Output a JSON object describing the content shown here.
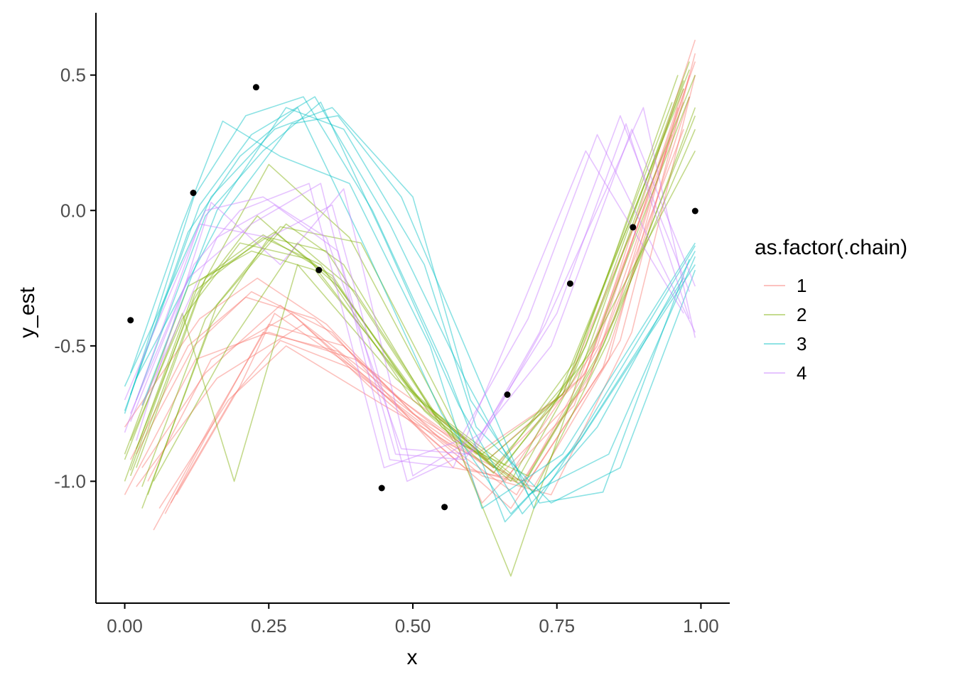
{
  "chart_data": {
    "type": "line",
    "xlabel": "x",
    "ylabel": "y_est",
    "xlim": [
      -0.05,
      1.05
    ],
    "ylim": [
      -1.45,
      0.73
    ],
    "x_ticks": [
      0.0,
      0.25,
      0.5,
      0.75,
      1.0
    ],
    "x_tick_labels": [
      "0.00",
      "0.25",
      "0.50",
      "0.75",
      "1.00"
    ],
    "y_ticks": [
      0.5,
      0.0,
      -0.5,
      -1.0
    ],
    "y_tick_labels": [
      "0.5",
      "0.0",
      "-0.5",
      "-1.0"
    ],
    "grid": false,
    "legend": {
      "title": "as.factor(.chain)",
      "position": "right",
      "entries": [
        {
          "label": "1",
          "color": "#F8766D"
        },
        {
          "label": "2",
          "color": "#7CAE00"
        },
        {
          "label": "3",
          "color": "#00BFC4"
        },
        {
          "label": "4",
          "color": "#C77CFF"
        }
      ]
    },
    "observed_points": {
      "x": [
        0.01,
        0.119,
        0.228,
        0.337,
        0.446,
        0.555,
        0.664,
        0.773,
        0.882,
        0.99
      ],
      "y": [
        -0.405,
        0.065,
        0.455,
        -0.22,
        -1.025,
        -1.095,
        -0.68,
        -0.27,
        -0.062,
        -0.002
      ]
    },
    "series": [
      {
        "chain": "1",
        "x": [
          0.0,
          0.123,
          0.25,
          0.4,
          0.58,
          0.64,
          0.8,
          0.99
        ],
        "y": [
          -1.05,
          -0.55,
          -0.45,
          -0.55,
          -0.82,
          -0.95,
          -0.6,
          0.63
        ]
      },
      {
        "chain": "1",
        "x": [
          0.03,
          0.14,
          0.27,
          0.42,
          0.6,
          0.66,
          0.82,
          0.97
        ],
        "y": [
          -0.95,
          -0.6,
          -0.35,
          -0.6,
          -0.9,
          -1.0,
          -0.5,
          0.45
        ]
      },
      {
        "chain": "1",
        "x": [
          0.05,
          0.16,
          0.25,
          0.38,
          0.55,
          0.68,
          0.85,
          0.98
        ],
        "y": [
          -1.18,
          -0.75,
          -0.42,
          -0.5,
          -0.85,
          -1.05,
          -0.4,
          0.5
        ]
      },
      {
        "chain": "1",
        "x": [
          0.02,
          0.12,
          0.22,
          0.36,
          0.57,
          0.7,
          0.84,
          0.96
        ],
        "y": [
          -0.9,
          -0.5,
          -0.3,
          -0.45,
          -0.95,
          -1.0,
          -0.55,
          0.38
        ]
      },
      {
        "chain": "1",
        "x": [
          0.06,
          0.18,
          0.28,
          0.45,
          0.58,
          0.62,
          0.78,
          0.99
        ],
        "y": [
          -1.1,
          -0.7,
          -0.5,
          -0.72,
          -0.88,
          -1.08,
          -0.72,
          0.55
        ]
      },
      {
        "chain": "1",
        "x": [
          0.09,
          0.2,
          0.26,
          0.41,
          0.53,
          0.65,
          0.8,
          0.97
        ],
        "y": [
          -1.05,
          -0.65,
          -0.38,
          -0.6,
          -0.8,
          -0.98,
          -0.65,
          0.3
        ]
      },
      {
        "chain": "1",
        "x": [
          0.0,
          0.13,
          0.23,
          0.35,
          0.5,
          0.63,
          0.79,
          0.94
        ],
        "y": [
          -0.8,
          -0.4,
          -0.25,
          -0.42,
          -0.75,
          -0.92,
          -0.62,
          0.22
        ]
      },
      {
        "chain": "1",
        "x": [
          0.04,
          0.15,
          0.29,
          0.43,
          0.59,
          0.71,
          0.86,
          0.99
        ],
        "y": [
          -1.0,
          -0.55,
          -0.38,
          -0.66,
          -0.95,
          -1.02,
          -0.48,
          0.58
        ]
      },
      {
        "chain": "1",
        "x": [
          0.07,
          0.17,
          0.24,
          0.37,
          0.52,
          0.67,
          0.83,
          0.98
        ],
        "y": [
          -1.12,
          -0.72,
          -0.45,
          -0.52,
          -0.82,
          -1.1,
          -0.58,
          0.42
        ]
      },
      {
        "chain": "1",
        "x": [
          0.01,
          0.11,
          0.21,
          0.33,
          0.48,
          0.61,
          0.76,
          0.95
        ],
        "y": [
          -0.92,
          -0.5,
          -0.32,
          -0.4,
          -0.7,
          -0.9,
          -0.68,
          0.28
        ]
      },
      {
        "chain": "1",
        "x": [
          0.02,
          0.16,
          0.31,
          0.46,
          0.62,
          0.74,
          0.88,
          0.99
        ],
        "y": [
          -1.02,
          -0.62,
          -0.42,
          -0.7,
          -0.98,
          -1.05,
          -0.45,
          0.5
        ]
      },
      {
        "chain": "1",
        "x": [
          0.08,
          0.19,
          0.27,
          0.39,
          0.56,
          0.69,
          0.81,
          0.97
        ],
        "y": [
          -1.08,
          -0.68,
          -0.48,
          -0.58,
          -0.86,
          -1.0,
          -0.6,
          0.4
        ]
      },
      {
        "chain": "2",
        "x": [
          0.0,
          0.12,
          0.24,
          0.34,
          0.5,
          0.64,
          0.78,
          0.99
        ],
        "y": [
          -1.0,
          -0.3,
          -0.1,
          -0.2,
          -0.7,
          -0.95,
          -0.6,
          0.5
        ]
      },
      {
        "chain": "2",
        "x": [
          0.02,
          0.14,
          0.26,
          0.36,
          0.53,
          0.67,
          0.8,
          0.98
        ],
        "y": [
          -0.95,
          -0.25,
          -0.08,
          -0.25,
          -0.75,
          -1.0,
          -0.5,
          0.55
        ]
      },
      {
        "chain": "2",
        "x": [
          0.01,
          0.1,
          0.2,
          0.32,
          0.49,
          0.63,
          0.75,
          0.97
        ],
        "y": [
          -0.85,
          -0.4,
          -0.12,
          -0.18,
          -0.65,
          -0.92,
          -0.7,
          0.45
        ]
      },
      {
        "chain": "2",
        "x": [
          0.04,
          0.16,
          0.28,
          0.38,
          0.55,
          0.69,
          0.82,
          0.99
        ],
        "y": [
          -1.05,
          -0.35,
          -0.05,
          -0.2,
          -0.8,
          -1.02,
          -0.55,
          0.35
        ]
      },
      {
        "chain": "2",
        "x": [
          0.0,
          0.11,
          0.22,
          0.33,
          0.52,
          0.65,
          0.77,
          0.96
        ],
        "y": [
          -0.9,
          -0.28,
          -0.15,
          -0.22,
          -0.72,
          -0.96,
          -0.65,
          0.5
        ]
      },
      {
        "chain": "2",
        "x": [
          0.03,
          0.15,
          0.25,
          0.35,
          0.54,
          0.68,
          0.79,
          0.99
        ],
        "y": [
          -1.1,
          -0.42,
          -0.1,
          -0.15,
          -0.76,
          -1.0,
          -0.58,
          0.22
        ]
      },
      {
        "chain": "2",
        "x": [
          0.01,
          0.13,
          0.23,
          0.37,
          0.51,
          0.66,
          0.81,
          0.98
        ],
        "y": [
          -0.98,
          -0.3,
          -0.02,
          -0.28,
          -0.7,
          -0.94,
          -0.52,
          0.42
        ]
      },
      {
        "chain": "2",
        "x": [
          0.05,
          0.18,
          0.3,
          0.4,
          0.57,
          0.7,
          0.83,
          0.99
        ],
        "y": [
          -1.0,
          -0.5,
          -0.12,
          -0.3,
          -0.85,
          -0.98,
          -0.5,
          0.3
        ]
      },
      {
        "chain": "2",
        "x": [
          0.02,
          0.12,
          0.25,
          0.39,
          0.56,
          0.67,
          0.79,
          0.97
        ],
        "y": [
          -0.88,
          -0.33,
          0.17,
          -0.1,
          -0.78,
          -1.35,
          -0.6,
          0.48
        ]
      },
      {
        "chain": "2",
        "x": [
          0.0,
          0.1,
          0.19,
          0.3,
          0.47,
          0.62,
          0.76,
          0.95
        ],
        "y": [
          -0.92,
          -0.38,
          -1.0,
          -0.2,
          -0.62,
          -0.9,
          -0.68,
          0.4
        ]
      },
      {
        "chain": "2",
        "x": [
          0.03,
          0.14,
          0.27,
          0.41,
          0.58,
          0.71,
          0.84,
          0.99
        ],
        "y": [
          -1.02,
          -0.4,
          -0.06,
          -0.12,
          -0.82,
          -1.04,
          -0.48,
          0.38
        ]
      },
      {
        "chain": "2",
        "x": [
          0.01,
          0.13,
          0.24,
          0.36,
          0.52,
          0.64,
          0.78,
          0.98
        ],
        "y": [
          -0.96,
          -0.26,
          -0.09,
          -0.24,
          -0.74,
          -0.97,
          -0.56,
          0.52
        ]
      },
      {
        "chain": "3",
        "x": [
          0.01,
          0.1,
          0.17,
          0.27,
          0.39,
          0.53,
          0.62,
          0.76,
          0.99
        ],
        "y": [
          -0.6,
          -0.05,
          0.33,
          0.2,
          0.1,
          -0.5,
          -1.1,
          -0.9,
          -0.12
        ]
      },
      {
        "chain": "3",
        "x": [
          0.0,
          0.12,
          0.21,
          0.31,
          0.43,
          0.56,
          0.66,
          0.79,
          0.99
        ],
        "y": [
          -0.75,
          0.05,
          0.35,
          0.42,
          0.0,
          -0.6,
          -1.15,
          -0.85,
          -0.2
        ]
      },
      {
        "chain": "3",
        "x": [
          0.02,
          0.14,
          0.24,
          0.34,
          0.45,
          0.58,
          0.69,
          0.82,
          0.99
        ],
        "y": [
          -0.7,
          -0.02,
          0.22,
          0.4,
          -0.1,
          -0.72,
          -1.12,
          -0.8,
          -0.15
        ]
      },
      {
        "chain": "3",
        "x": [
          0.0,
          0.15,
          0.26,
          0.36,
          0.5,
          0.6,
          0.72,
          0.83,
          0.98
        ],
        "y": [
          -0.65,
          0.05,
          0.3,
          0.38,
          0.05,
          -0.7,
          -1.08,
          -1.04,
          -0.18
        ]
      },
      {
        "chain": "3",
        "x": [
          0.03,
          0.16,
          0.28,
          0.38,
          0.52,
          0.61,
          0.74,
          0.86,
          0.99
        ],
        "y": [
          -0.72,
          0.0,
          0.38,
          0.3,
          -0.2,
          -0.8,
          -1.08,
          -0.95,
          -0.22
        ]
      },
      {
        "chain": "3",
        "x": [
          0.01,
          0.11,
          0.2,
          0.3,
          0.42,
          0.55,
          0.67,
          0.78,
          0.97
        ],
        "y": [
          -0.68,
          -0.08,
          0.2,
          0.38,
          -0.15,
          -0.75,
          -1.12,
          -0.88,
          -0.25
        ]
      },
      {
        "chain": "3",
        "x": [
          0.0,
          0.13,
          0.22,
          0.33,
          0.46,
          0.59,
          0.7,
          0.84,
          0.99
        ],
        "y": [
          -0.74,
          0.02,
          0.28,
          0.42,
          -0.05,
          -0.62,
          -1.05,
          -0.9,
          -0.17
        ]
      },
      {
        "chain": "3",
        "x": [
          0.02,
          0.17,
          0.29,
          0.37,
          0.48,
          0.62,
          0.71,
          0.8,
          0.99
        ],
        "y": [
          -0.62,
          -0.02,
          0.32,
          0.35,
          0.05,
          -0.65,
          -1.1,
          -0.8,
          -0.13
        ]
      },
      {
        "chain": "4",
        "x": [
          0.01,
          0.12,
          0.2,
          0.32,
          0.45,
          0.58,
          0.7,
          0.82,
          0.99
        ],
        "y": [
          -0.78,
          -0.2,
          0.0,
          0.1,
          -0.95,
          -0.85,
          -0.4,
          0.28,
          -0.45
        ]
      },
      {
        "chain": "4",
        "x": [
          0.0,
          0.14,
          0.24,
          0.35,
          0.48,
          0.6,
          0.72,
          0.86,
          0.98
        ],
        "y": [
          -0.7,
          0.0,
          0.05,
          -0.1,
          -0.88,
          -0.9,
          -0.45,
          0.35,
          -0.3
        ]
      },
      {
        "chain": "4",
        "x": [
          0.02,
          0.15,
          0.27,
          0.38,
          0.5,
          0.62,
          0.74,
          0.88,
          0.99
        ],
        "y": [
          -0.85,
          0.03,
          -0.2,
          0.08,
          -0.98,
          -0.82,
          -0.5,
          0.3,
          -0.28
        ]
      },
      {
        "chain": "4",
        "x": [
          0.01,
          0.11,
          0.22,
          0.34,
          0.46,
          0.57,
          0.69,
          0.8,
          0.97
        ],
        "y": [
          -0.75,
          -0.25,
          -0.05,
          0.1,
          -0.92,
          -0.95,
          -0.35,
          0.22,
          -0.38
        ]
      },
      {
        "chain": "4",
        "x": [
          0.0,
          0.13,
          0.25,
          0.36,
          0.49,
          0.61,
          0.73,
          0.9,
          0.99
        ],
        "y": [
          -0.82,
          -0.05,
          -0.1,
          0.02,
          -1.0,
          -0.88,
          -0.42,
          0.38,
          -0.47
        ]
      },
      {
        "chain": "4",
        "x": [
          0.03,
          0.16,
          0.26,
          0.37,
          0.47,
          0.59,
          0.75,
          0.87,
          0.98
        ],
        "y": [
          -0.72,
          -0.1,
          0.02,
          -0.15,
          -0.9,
          -0.92,
          -0.38,
          0.32,
          -0.4
        ]
      }
    ]
  }
}
